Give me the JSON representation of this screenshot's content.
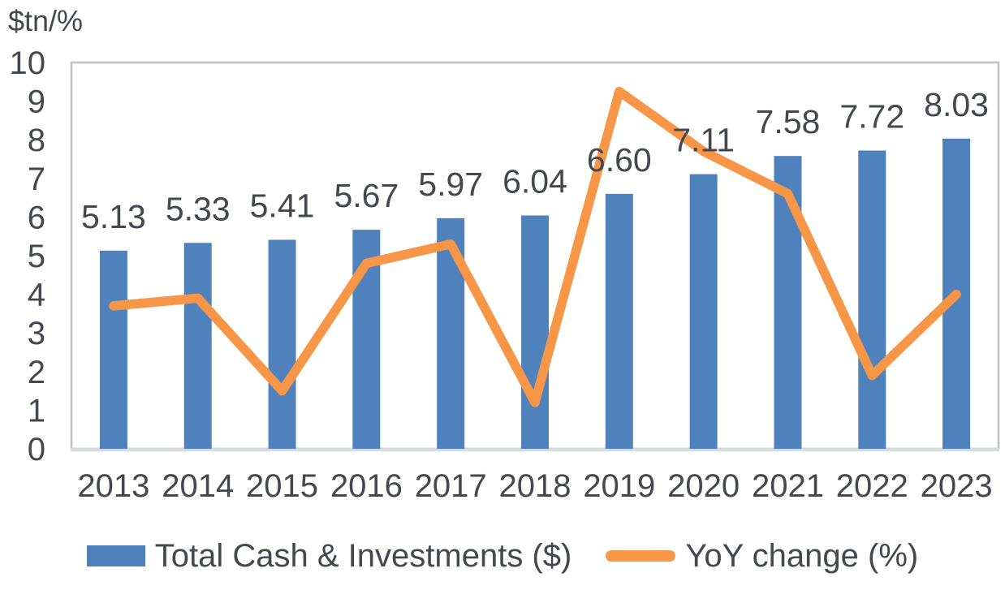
{
  "colors": {
    "bar": "#4F81BD",
    "line": "#F79646",
    "text": "#45474F",
    "plot_border": "#C2C2C2",
    "axis_line": "#D7DADC",
    "background": "#FFFFFF"
  },
  "chart_data": {
    "type": "bar",
    "combo": "bar+line",
    "title": "",
    "ylabel": "$tn/%",
    "xlabel": "",
    "ylim": [
      0,
      10
    ],
    "yticks": [
      0,
      1,
      2,
      3,
      4,
      5,
      6,
      7,
      8,
      9,
      10
    ],
    "grid": false,
    "legend_position": "bottom",
    "categories": [
      "2013",
      "2014",
      "2015",
      "2016",
      "2017",
      "2018",
      "2019",
      "2020",
      "2021",
      "2022",
      "2023"
    ],
    "series": [
      {
        "name": "Total Cash & Investments ($)",
        "type": "bar",
        "color": "#4F81BD",
        "values": [
          5.13,
          5.33,
          5.41,
          5.67,
          5.97,
          6.04,
          6.6,
          7.11,
          7.58,
          7.72,
          8.03
        ],
        "data_labels": [
          "5.13",
          "5.33",
          "5.41",
          "5.67",
          "5.97",
          "6.04",
          "6.60",
          "7.11",
          "7.58",
          "7.72",
          "8.03"
        ]
      },
      {
        "name": "YoY change (%)",
        "type": "line",
        "color": "#F79646",
        "values": [
          3.7,
          3.9,
          1.5,
          4.8,
          5.3,
          1.2,
          9.25,
          7.7,
          6.6,
          1.9,
          4.0
        ]
      }
    ]
  },
  "legend": {
    "bar_label": "Total Cash & Investments ($)",
    "line_label": "YoY change (%)"
  }
}
